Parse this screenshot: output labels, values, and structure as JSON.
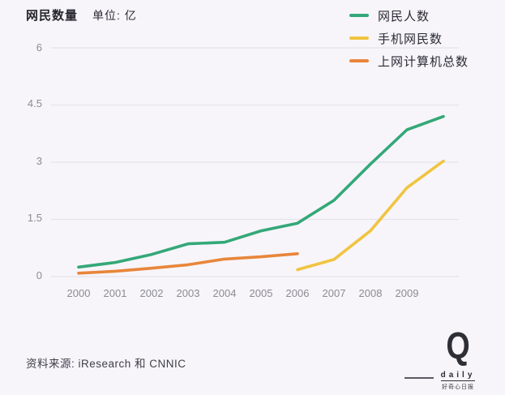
{
  "figure": {
    "title": "网民数量",
    "unit": "单位: 亿",
    "source": "资料来源: iResearch 和 CNNIC",
    "logo": {
      "letter": "Q",
      "word": "daily",
      "caption": "好奇心日报"
    }
  },
  "colors": {
    "background": "#f7f5fa",
    "gridline": "#e6e4ec",
    "title_text": "#26262e",
    "tick_text": "#8b8b93"
  },
  "chart_data": {
    "type": "line",
    "title": "网民数量",
    "unit_label": "单位: 亿",
    "x_start": 2000,
    "xtick_labels": [
      "2000",
      "2001",
      "2002",
      "2003",
      "2004",
      "2005",
      "2006",
      "2007",
      "2008",
      "2009"
    ],
    "ytick_labels": [
      "6",
      "4.5",
      "3",
      "1.5",
      "0"
    ],
    "ylim": [
      0,
      6
    ],
    "grid": true,
    "legend_position": "top-right",
    "series": [
      {
        "name": "网民人数",
        "color": "#34a878",
        "x": [
          2000,
          2001,
          2002,
          2003,
          2004,
          2005,
          2006,
          2007,
          2008,
          2009,
          2010
        ],
        "values": [
          0.25,
          0.37,
          0.58,
          0.86,
          0.9,
          1.2,
          1.4,
          2.0,
          2.95,
          3.85,
          4.2
        ]
      },
      {
        "name": "手机网民数",
        "color": "#f0c440",
        "x": [
          2006,
          2007,
          2008,
          2009,
          2010
        ],
        "values": [
          0.18,
          0.45,
          1.2,
          2.33,
          3.03
        ]
      },
      {
        "name": "上网计算机总数",
        "color": "#e8863a",
        "x": [
          2000,
          2001,
          2002,
          2003,
          2004,
          2005,
          2006
        ],
        "values": [
          0.09,
          0.14,
          0.22,
          0.31,
          0.46,
          0.52,
          0.6
        ]
      }
    ],
    "source": "资料来源: iResearch 和 CNNIC"
  }
}
